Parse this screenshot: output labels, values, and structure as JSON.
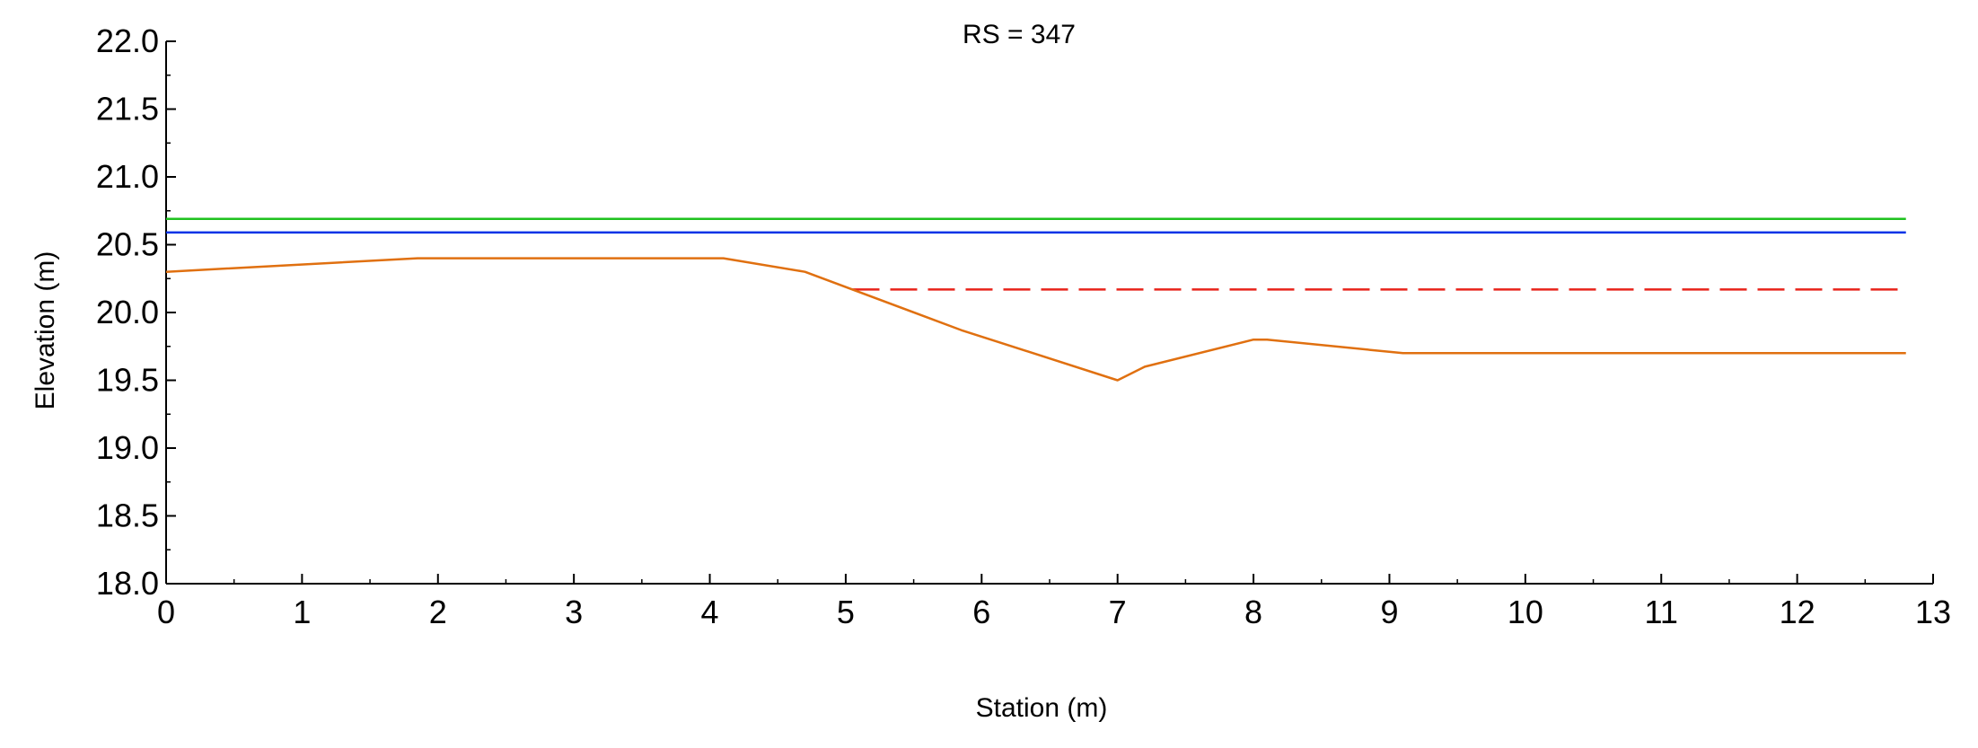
{
  "chart_data": {
    "type": "line",
    "title": "RS = 347",
    "xlabel": "Station (m)",
    "ylabel": "Elevation (m)",
    "xlim": [
      0,
      13
    ],
    "ylim": [
      18.0,
      22.0
    ],
    "x_ticks": [
      0,
      1,
      2,
      3,
      4,
      5,
      6,
      7,
      8,
      9,
      10,
      11,
      12,
      13
    ],
    "x_tick_labels": [
      "0",
      "1",
      "2",
      "3",
      "4",
      "5",
      "6",
      "7",
      "8",
      "9",
      "10",
      "11",
      "12",
      "13"
    ],
    "y_ticks": [
      18.0,
      18.5,
      19.0,
      19.5,
      20.0,
      20.5,
      21.0,
      21.5,
      22.0
    ],
    "y_tick_labels": [
      "18.0",
      "18.5",
      "19.0",
      "19.5",
      "20.0",
      "20.5",
      "21.0",
      "21.5",
      "22.0"
    ],
    "x_minor_step": 0.5,
    "y_minor_step": 0.25,
    "grid": false,
    "legend": "none",
    "series": [
      {
        "style": "solid",
        "color": "#1fc21f",
        "x": [
          0,
          12.8
        ],
        "y": [
          20.69,
          20.69
        ]
      },
      {
        "style": "solid",
        "color": "#0033e6",
        "x": [
          0,
          12.8
        ],
        "y": [
          20.59,
          20.59
        ]
      },
      {
        "style": "dashed",
        "color": "#e8231a",
        "x": [
          5.05,
          12.8
        ],
        "y": [
          20.17,
          20.17
        ]
      },
      {
        "style": "solid",
        "color": "#e07010",
        "x": [
          0,
          1.85,
          4.1,
          4.7,
          5.85,
          7.0,
          7.2,
          8.0,
          8.1,
          9.1,
          12.8
        ],
        "y": [
          20.3,
          20.4,
          20.4,
          20.3,
          19.87,
          19.5,
          19.6,
          19.8,
          19.8,
          19.7,
          19.7
        ]
      }
    ]
  }
}
